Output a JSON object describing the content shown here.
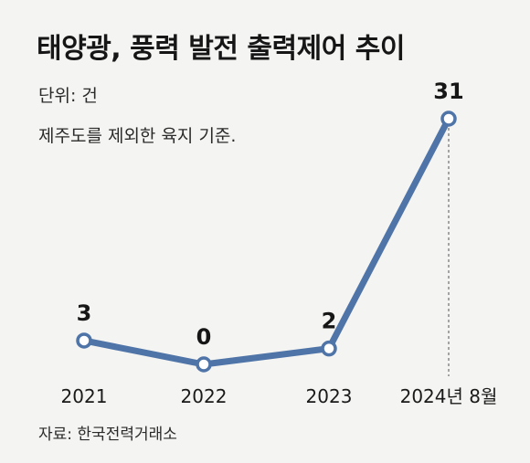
{
  "title": "태양광, 풍력 발전 출력제어 추이",
  "unit": "단위: 건",
  "note": "제주도를 제외한 육지 기준.",
  "source": "자료: 한국전력거래소",
  "colors": {
    "line": "#4f74a8",
    "background": "#f4f4f2",
    "marker_fill": "#ffffff"
  },
  "chart_data": {
    "type": "line",
    "categories": [
      "2021",
      "2022",
      "2023",
      "2024년 8월"
    ],
    "values": [
      3,
      0,
      2,
      31
    ],
    "data_labels": [
      "3",
      "0",
      "2",
      "31"
    ],
    "ylim": [
      0,
      31
    ],
    "grid": false,
    "legend": "none"
  }
}
